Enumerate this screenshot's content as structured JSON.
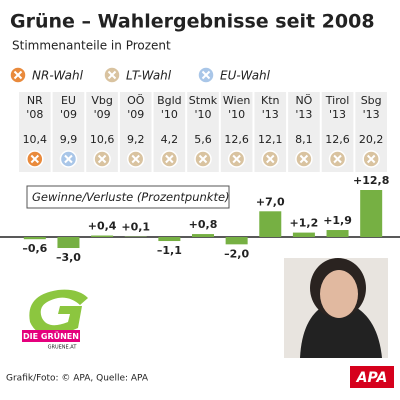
{
  "chart_data": {
    "type": "bar",
    "title": "Grüne – Wahlergebnisse seit 2008",
    "subtitle": "Stimmenanteile in Prozent",
    "legend": [
      {
        "label": "NR-Wahl",
        "color": "#e98a3c"
      },
      {
        "label": "LT-Wahl",
        "color": "#d9c3a0"
      },
      {
        "label": "EU-Wahl",
        "color": "#a9c6e8"
      }
    ],
    "categories": [
      "NR",
      "EU",
      "Vbg",
      "OÖ",
      "Bgld",
      "Stmk",
      "Wien",
      "Ktn",
      "NÖ",
      "Tirol",
      "Sbg"
    ],
    "years": [
      "'08",
      "'09",
      "'09",
      "'09",
      "'10",
      "'10",
      "'10",
      "'13",
      "'13",
      "'13",
      "'13"
    ],
    "share_labels": [
      "10,4",
      "9,9",
      "10,6",
      "9,2",
      "4,2",
      "5,6",
      "12,6",
      "12,1",
      "8,1",
      "12,6",
      "20,2"
    ],
    "election": [
      "NR-Wahl",
      "EU-Wahl",
      "LT-Wahl",
      "LT-Wahl",
      "LT-Wahl",
      "LT-Wahl",
      "LT-Wahl",
      "LT-Wahl",
      "LT-Wahl",
      "LT-Wahl",
      "LT-Wahl"
    ],
    "series": [
      {
        "name": "Gewinne/Verluste (Prozentpunkte)",
        "color": "#76b043",
        "values": [
          -0.6,
          -3.0,
          0.4,
          0.1,
          -1.1,
          0.8,
          -2.0,
          7.0,
          1.2,
          1.9,
          12.8
        ],
        "value_labels": [
          "–0,6",
          "–3,0",
          "+0,4",
          "+0,1",
          "–1,1",
          "+0,8",
          "–2,0",
          "+7,0",
          "+1,2",
          "+1,9",
          "+12,8"
        ]
      }
    ],
    "logo_text": "DIE GRÜNEN",
    "logo_sub": "GRUENE.AT",
    "source": "Grafik/Foto: © APA, Quelle: APA",
    "brand": "APA"
  }
}
